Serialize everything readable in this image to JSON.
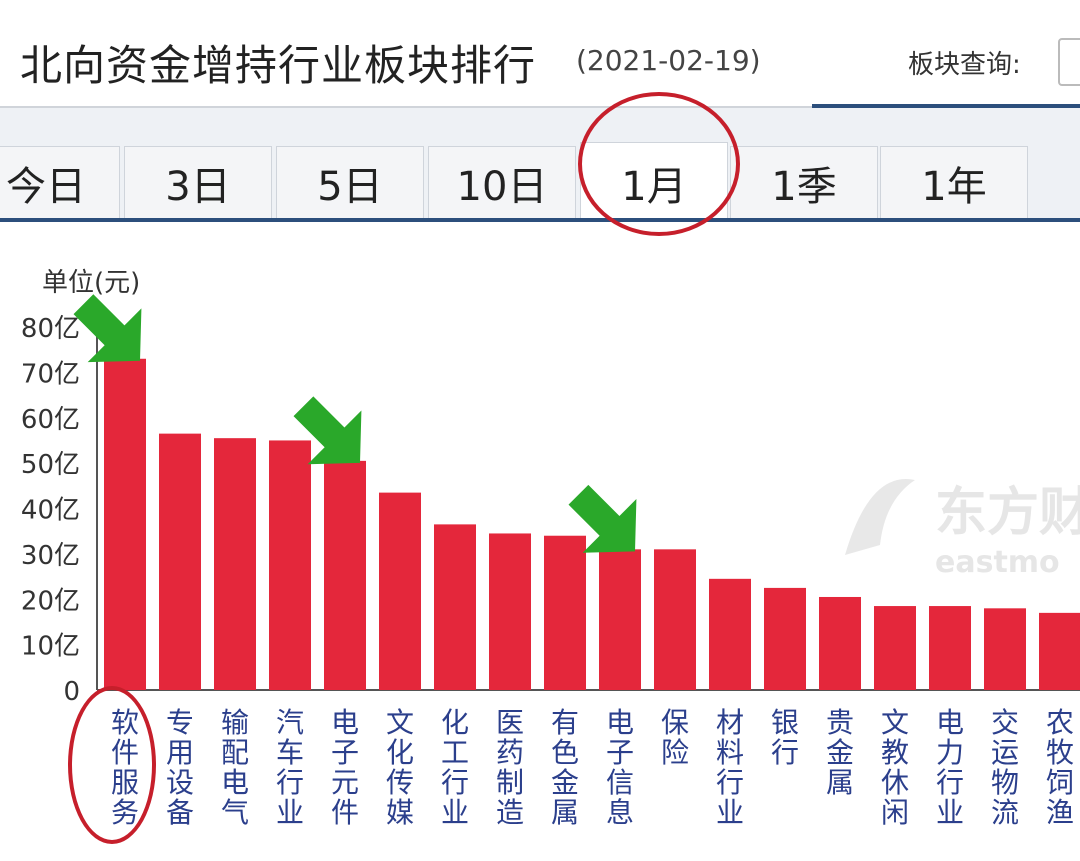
{
  "header": {
    "title": "北向资金增持行业板块排行",
    "date": "(2021-02-19)",
    "query_label": "板块查询:"
  },
  "tabs": [
    {
      "label": "今日",
      "active": false
    },
    {
      "label": "3日",
      "active": false
    },
    {
      "label": "5日",
      "active": false
    },
    {
      "label": "10日",
      "active": false
    },
    {
      "label": "1月",
      "active": true
    },
    {
      "label": "1季",
      "active": false
    },
    {
      "label": "1年",
      "active": false
    }
  ],
  "watermark": {
    "cn": "东方财",
    "en": "eastmo"
  },
  "chart_data": {
    "type": "bar",
    "unit_label": "单位(元)",
    "y_ticks": [
      "0",
      "10亿",
      "20亿",
      "30亿",
      "40亿",
      "50亿",
      "60亿",
      "70亿",
      "80亿"
    ],
    "ylim": [
      0,
      80
    ],
    "categories": [
      "软件服务",
      "专用设备",
      "输配电气",
      "汽车行业",
      "电子元件",
      "文化传媒",
      "化工行业",
      "医药制造",
      "有色金属",
      "电子信息",
      "保险",
      "材料行业",
      "银行",
      "贵金属",
      "文教休闲",
      "电力行业",
      "交运物流",
      "农牧饲渔"
    ],
    "values": [
      73,
      56.5,
      55.5,
      55,
      50.5,
      43.5,
      36.5,
      34.5,
      34,
      31,
      31,
      24.5,
      22.5,
      20.5,
      18.5,
      18.5,
      18,
      17
    ],
    "bar_color": "#e4273b",
    "highlight_arrows_on": [
      0,
      4,
      9
    ],
    "arrow_color": "#2aa82a",
    "annotation_color": "#c61f2b"
  }
}
